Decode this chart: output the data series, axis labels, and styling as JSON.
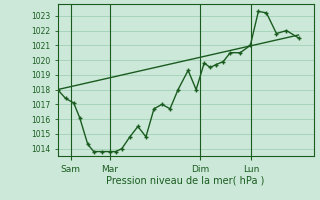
{
  "background_color": "#cce8d8",
  "grid_color": "#99ccb0",
  "line_color": "#1a5c20",
  "xlabel": "Pression niveau de la mer( hPa )",
  "ylim": [
    1013.5,
    1023.8
  ],
  "yticks": [
    1014,
    1015,
    1016,
    1017,
    1018,
    1019,
    1020,
    1021,
    1022,
    1023
  ],
  "xtick_labels": [
    "Sam",
    "Mar",
    "Dim",
    "Lun"
  ],
  "xtick_positions": [
    13,
    52,
    142,
    193
  ],
  "vline_positions": [
    13,
    52,
    142,
    193
  ],
  "series1_x": [
    0,
    8,
    16,
    22,
    30,
    36,
    44,
    52,
    58,
    64,
    72,
    80,
    88,
    96,
    104,
    112,
    120,
    130,
    138,
    146,
    152,
    158,
    165,
    172,
    182,
    192,
    200,
    208,
    218,
    228,
    240
  ],
  "series1_y": [
    1018.0,
    1017.4,
    1017.1,
    1016.1,
    1014.3,
    1013.8,
    1013.8,
    1013.8,
    1013.8,
    1014.0,
    1014.8,
    1015.5,
    1014.8,
    1016.7,
    1017.0,
    1016.7,
    1018.0,
    1019.3,
    1018.0,
    1019.8,
    1019.5,
    1019.7,
    1019.9,
    1020.5,
    1020.5,
    1021.0,
    1023.3,
    1023.2,
    1021.8,
    1022.0,
    1021.5
  ],
  "series2_x": [
    0,
    240
  ],
  "series2_y": [
    1018.0,
    1021.7
  ],
  "xlim": [
    0,
    255
  ]
}
